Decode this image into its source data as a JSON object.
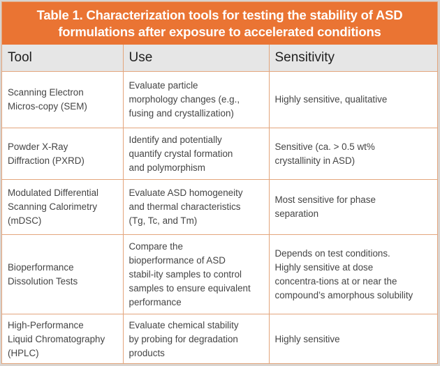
{
  "title": {
    "line1": "Table 1. Characterization tools for testing the stability of ASD",
    "line2": "formulations after exposure to accelerated conditions",
    "background_color": "#ea7433"
  },
  "table": {
    "headers": [
      "Tool",
      "Use",
      "Sensitivity"
    ],
    "rows": [
      {
        "tool": [
          "Scanning Electron",
          "Micros-copy (SEM)"
        ],
        "use": [
          "Evaluate particle",
          "morphology changes (e.g.,",
          "fusing and crystallization)"
        ],
        "sensitivity": [
          "Highly sensitive, qualitative"
        ]
      },
      {
        "tool": [
          "Powder X-Ray",
          "Diffraction (PXRD)"
        ],
        "use": [
          "Identify and potentially",
          "quantify crystal formation",
          "and polymorphism"
        ],
        "sensitivity": [
          "Sensitive (ca. > 0.5 wt%",
          "crystallinity in ASD)"
        ]
      },
      {
        "tool": [
          "Modulated Differential",
          "Scanning Calorimetry",
          "(mDSC)"
        ],
        "use": [
          "Evaluate ASD homogeneity",
          "and thermal characteristics",
          "(Tg, Tc, and Tm)"
        ],
        "sensitivity": [
          "Most sensitive for phase",
          "separation"
        ]
      },
      {
        "tool": [
          "Bioperformance",
          "Dissolution Tests"
        ],
        "use": [
          "Compare the",
          "bioperformance of ASD",
          "stabil-ity samples to control",
          "samples to ensure equivalent",
          "performance"
        ],
        "sensitivity": [
          "Depends on test conditions.",
          "Highly sensitive at dose",
          "concentra-tions at or near the",
          "compound’s amorphous solubility"
        ]
      },
      {
        "tool": [
          "High-Performance",
          "Liquid Chromatography",
          "(HPLC)"
        ],
        "use": [
          "Evaluate chemical stability",
          "by probing for degradation",
          "products"
        ],
        "sensitivity": [
          "Highly sensitive"
        ]
      }
    ]
  }
}
